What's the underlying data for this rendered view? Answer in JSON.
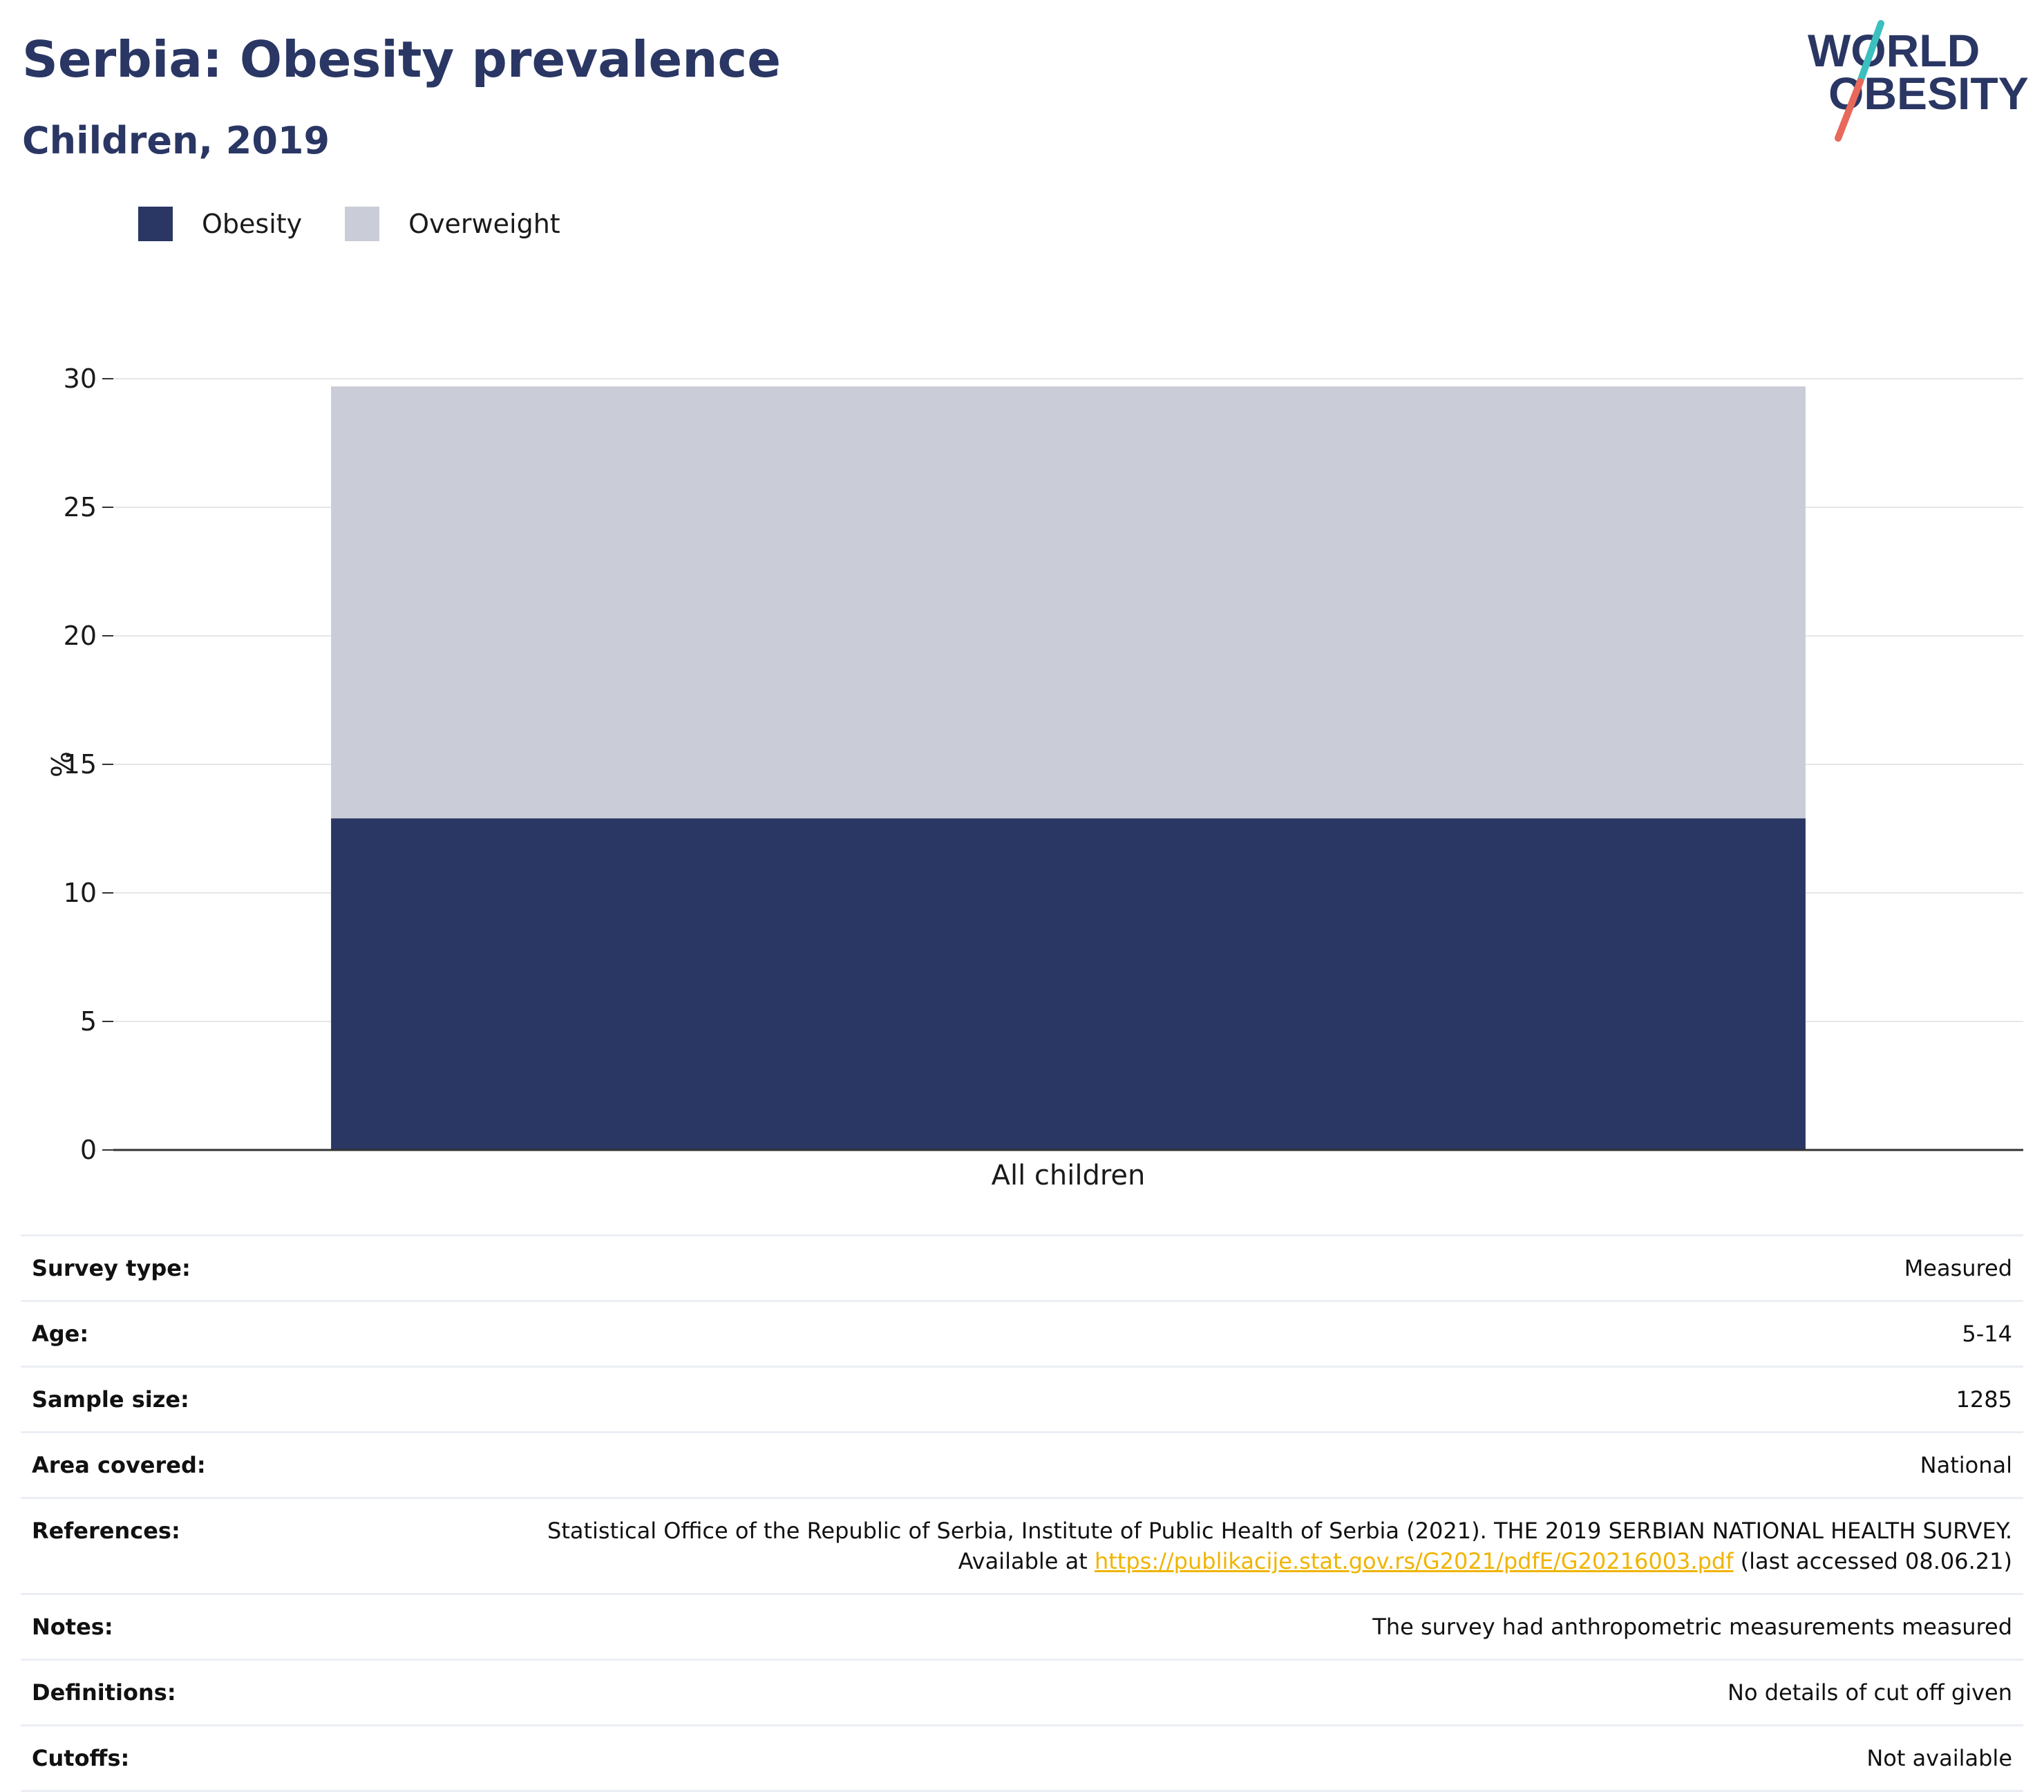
{
  "header": {
    "title": "Serbia: Obesity prevalence",
    "subtitle": "Children, 2019"
  },
  "logo": {
    "line1": "WORLD",
    "line2": "OBESITY",
    "colors": {
      "text": "#2a3663",
      "slash_top": "#3bbfbf",
      "slash_bottom": "#e8685a"
    }
  },
  "legend": [
    {
      "label": "Obesity",
      "color": "#2a3663"
    },
    {
      "label": "Overweight",
      "color": "#cacdd8"
    }
  ],
  "chart_data": {
    "type": "bar",
    "stacked": true,
    "categories": [
      "All children"
    ],
    "series": [
      {
        "name": "Obesity",
        "values": [
          12.9
        ],
        "color": "#2a3663"
      },
      {
        "name": "Overweight",
        "values": [
          16.8
        ],
        "color": "#cacdd8"
      }
    ],
    "ylabel": "%",
    "ylim": [
      0,
      30
    ],
    "yticks": [
      0,
      5,
      10,
      15,
      20,
      25,
      30
    ],
    "grid": true,
    "legend_position": "top-left"
  },
  "details": {
    "rows": [
      {
        "key": "Survey type:",
        "value": "Measured"
      },
      {
        "key": "Age:",
        "value": "5-14"
      },
      {
        "key": "Sample size:",
        "value": "1285"
      },
      {
        "key": "Area covered:",
        "value": "National"
      },
      {
        "key": "Notes:",
        "value": "The survey had anthropometric measurements measured"
      },
      {
        "key": "Definitions:",
        "value": "No details of cut off given"
      },
      {
        "key": "Cutoffs:",
        "value": "Not available"
      }
    ],
    "references": {
      "key": "References:",
      "text_before": "Statistical Office of the Republic of Serbia, Institute of Public Health of Serbia (2021). THE 2019 SERBIAN NATIONAL HEALTH SURVEY. Available at ",
      "link": "https://publikacije.stat.gov.rs/G2021/pdfE/G20216003.pdf",
      "text_after": " (last accessed 08.06.21)"
    }
  }
}
